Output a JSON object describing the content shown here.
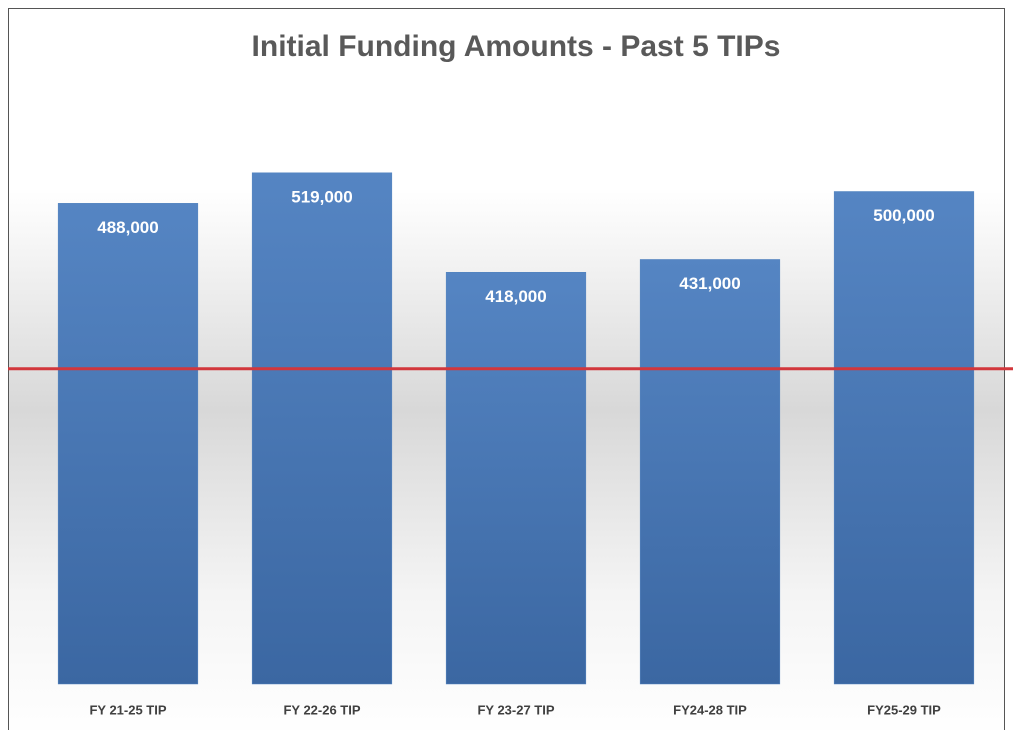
{
  "chart_data": {
    "type": "bar",
    "title": "Initial Funding Amounts - Past 5 TIPs",
    "categories": [
      "FY 21-25 TIP",
      "FY 22-26 TIP",
      "FY 23-27 TIP",
      "FY24-28 TIP",
      "FY25-29 TIP"
    ],
    "values": [
      488000,
      519000,
      418000,
      431000,
      500000
    ],
    "value_labels": [
      "488,000",
      "519,000",
      "418,000",
      "431,000",
      "500,000"
    ],
    "color": "#4f81bd",
    "reference_line": {
      "value": 320000,
      "color": "#d2373c"
    },
    "ylim": [
      0,
      600000
    ]
  }
}
